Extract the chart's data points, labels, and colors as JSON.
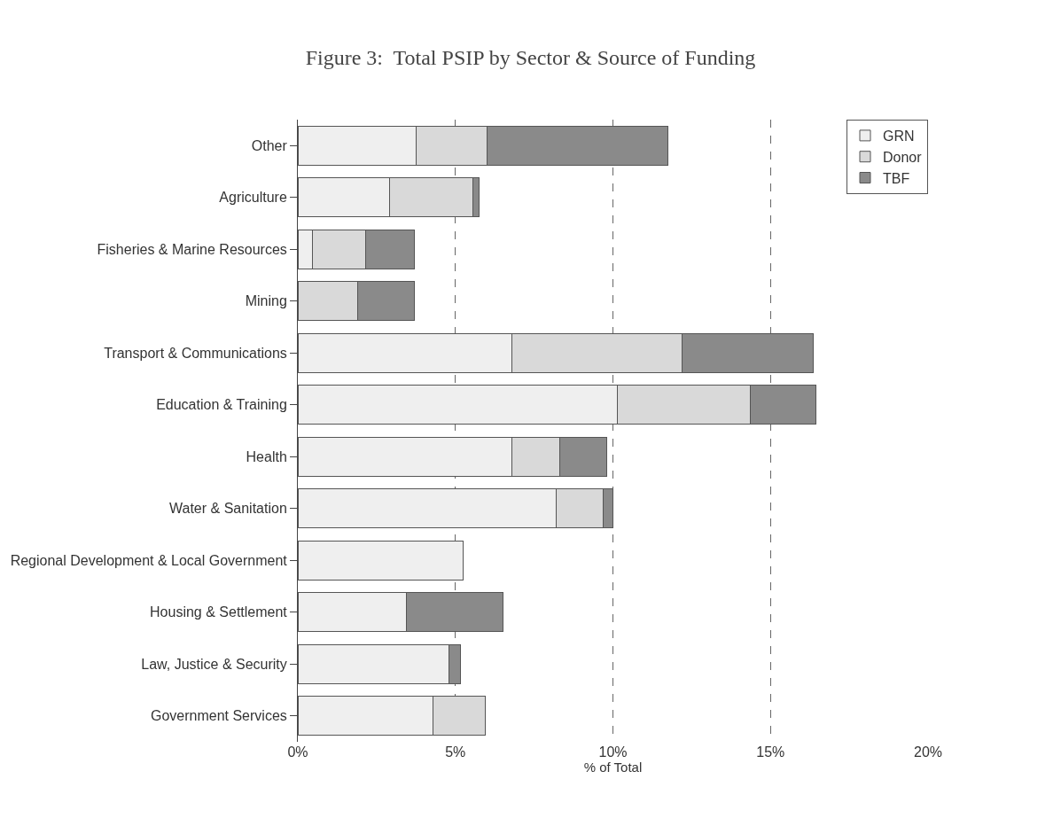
{
  "chart_data": {
    "type": "bar",
    "orientation": "horizontal",
    "stacked": true,
    "title": "Figure 3:  Total PSIP by Sector & Source of Funding",
    "xlabel": "% of Total",
    "categories": [
      "Other",
      "Agriculture",
      "Fisheries & Marine Resources",
      "Mining",
      "Transport & Communications",
      "Education & Training",
      "Health",
      "Water & Sanitation",
      "Regional Development & Local Government",
      "Housing & Settlement",
      "Law, Justice & Security",
      "Government Services"
    ],
    "series": [
      {
        "name": "GRN",
        "color": "#efefef",
        "values": [
          3.75,
          2.9,
          0.45,
          0,
          6.8,
          10.15,
          6.8,
          8.2,
          5.25,
          3.45,
          4.8,
          4.3
        ]
      },
      {
        "name": "Donor",
        "color": "#d9d9d9",
        "values": [
          2.25,
          2.65,
          1.7,
          1.9,
          5.4,
          4.2,
          1.5,
          1.5,
          null,
          null,
          null,
          1.65
        ]
      },
      {
        "name": "TBF",
        "color": "#8a8a8a",
        "values": [
          5.75,
          0.2,
          1.55,
          1.8,
          4.15,
          2.1,
          1.5,
          0.3,
          null,
          3.05,
          0.35,
          null
        ]
      }
    ],
    "xlim": [
      0,
      20
    ],
    "xticks": [
      {
        "value": 0,
        "label": "0%"
      },
      {
        "value": 5,
        "label": "5%"
      },
      {
        "value": 10,
        "label": "10%"
      },
      {
        "value": 15,
        "label": "15%"
      },
      {
        "value": 20,
        "label": "20%"
      }
    ],
    "grid": "x",
    "legend": "top right"
  }
}
